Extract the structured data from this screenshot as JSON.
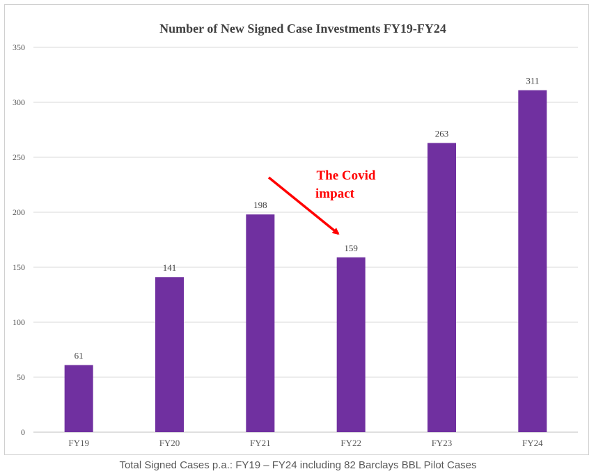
{
  "chart_data": {
    "type": "bar",
    "title": "Number of New Signed Case Investments FY19-FY24",
    "categories": [
      "FY19",
      "FY20",
      "FY21",
      "FY22",
      "FY23",
      "FY24"
    ],
    "values": [
      61,
      141,
      198,
      159,
      263,
      311
    ],
    "data_labels": [
      "61",
      "141",
      "198",
      "159",
      "263",
      "311"
    ],
    "yticks": [
      0,
      50,
      100,
      150,
      200,
      250,
      300,
      350
    ],
    "ylim": [
      0,
      350
    ],
    "xlabel": "",
    "ylabel": "",
    "grid": true,
    "legend": "none",
    "bar_color": "#7030a0",
    "annotation": {
      "lines": [
        "The Covid",
        "impact"
      ],
      "color": "#ff0000",
      "arrow_from_category": "FY21",
      "arrow_to_category": "FY22"
    }
  },
  "caption": "Total Signed Cases p.a.: FY19 – FY24 including 82 Barclays BBL Pilot Cases"
}
